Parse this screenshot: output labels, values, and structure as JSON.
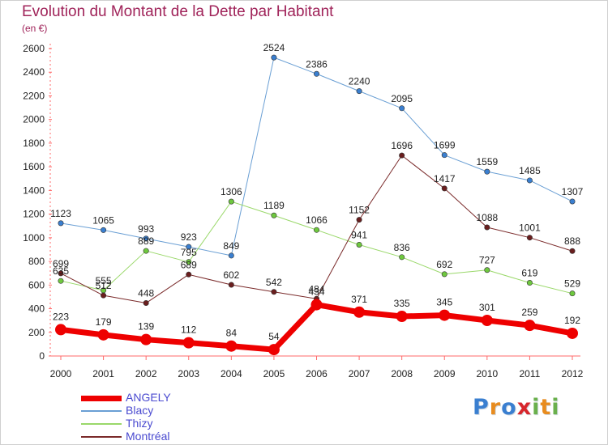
{
  "title": "Evolution du Montant de la Dette par Habitant",
  "subtitle": "(en €)",
  "logo": {
    "text": "Proxiti",
    "letters": [
      {
        "ch": "P",
        "color": "#3a7fd0"
      },
      {
        "ch": "r",
        "color": "#e88c1f"
      },
      {
        "ch": "o",
        "color": "#3a7fd0"
      },
      {
        "ch": "x",
        "color": "#d7262c"
      },
      {
        "ch": "i",
        "color": "#6ab04c"
      },
      {
        "ch": "t",
        "color": "#e88c1f"
      },
      {
        "ch": "i",
        "color": "#6ab04c"
      }
    ]
  },
  "chart_data": {
    "type": "line",
    "title": "Evolution du Montant de la Dette par Habitant",
    "subtitle": "(en €)",
    "x": [
      "2000",
      "2001",
      "2002",
      "2003",
      "2004",
      "2005",
      "2006",
      "2007",
      "2008",
      "2009",
      "2010",
      "2011",
      "2012"
    ],
    "ylim": [
      0,
      2600
    ],
    "yticks": [
      0,
      200,
      400,
      600,
      800,
      1000,
      1200,
      1400,
      1600,
      1800,
      2000,
      2200,
      2400,
      2600
    ],
    "grid": false,
    "legend_position": "bottom-left",
    "series": [
      {
        "name": "Blacy",
        "color": "#6a9fd4",
        "marker": "#3a7fd0",
        "width": 1,
        "values": [
          1123,
          1065,
          993,
          923,
          849,
          2524,
          2386,
          2240,
          2095,
          1699,
          1559,
          1485,
          1307
        ]
      },
      {
        "name": "Thizy",
        "color": "#9ad86a",
        "marker": "#6ec83e",
        "width": 1,
        "values": [
          635,
          555,
          889,
          795,
          1306,
          1189,
          1066,
          941,
          836,
          692,
          727,
          619,
          529
        ]
      },
      {
        "name": "Montréal",
        "color": "#7a2a2a",
        "marker": "#6a1e1e",
        "width": 1,
        "values": [
          699,
          512,
          448,
          689,
          602,
          542,
          484,
          1152,
          1696,
          1417,
          1088,
          1001,
          888
        ]
      },
      {
        "name": "ANGELY",
        "color": "#ee0000",
        "marker": "#ee0000",
        "width": 7,
        "values": [
          223,
          179,
          139,
          112,
          84,
          54,
          434,
          371,
          335,
          345,
          301,
          259,
          192
        ]
      }
    ],
    "legend_order": [
      "ANGELY",
      "Blacy",
      "Thizy",
      "Montréal"
    ]
  }
}
